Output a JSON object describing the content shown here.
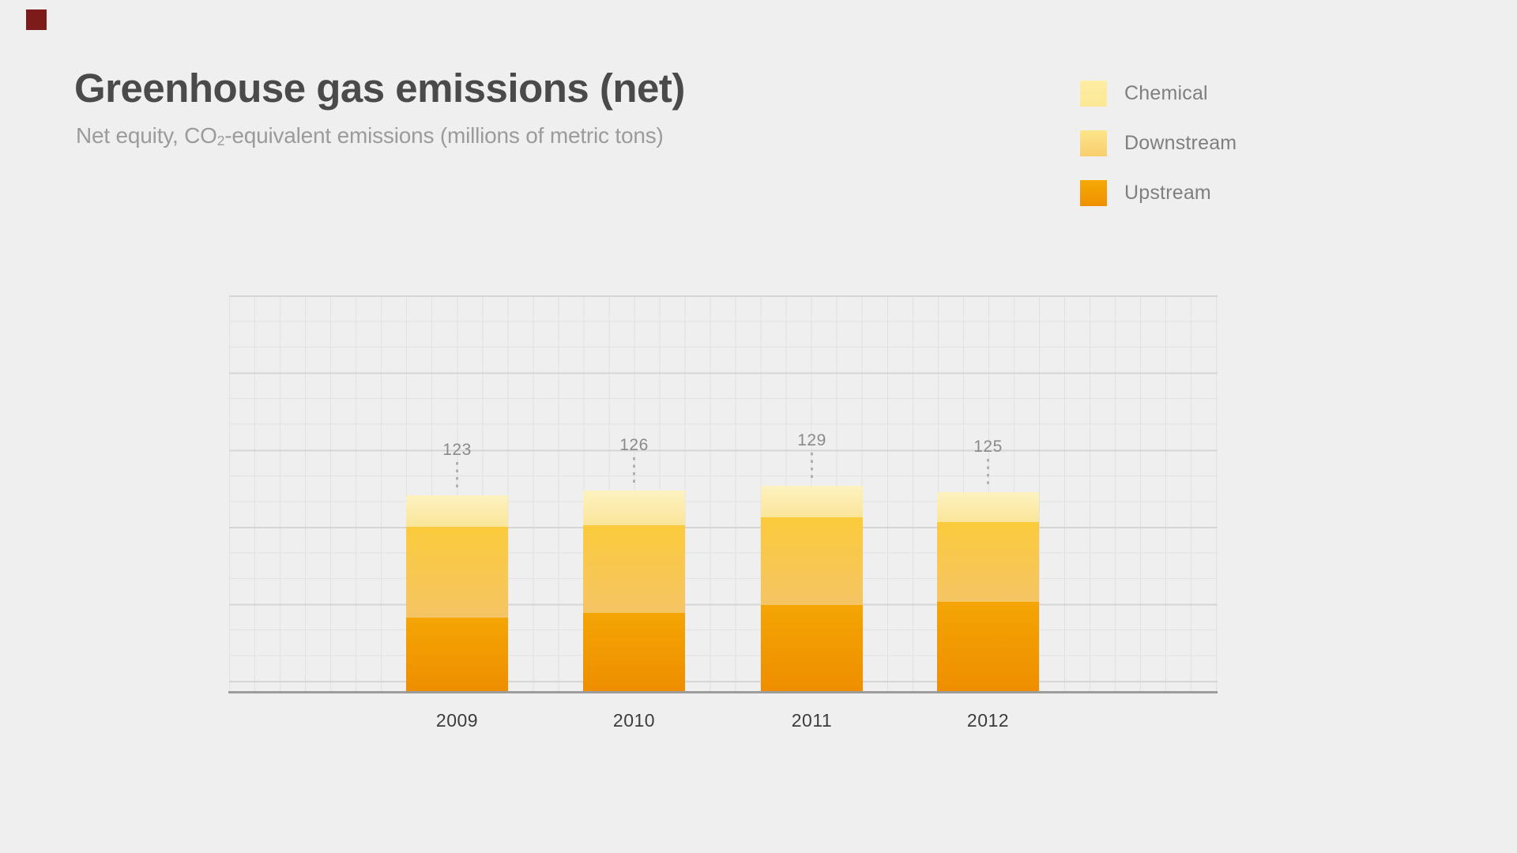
{
  "page": {
    "background_color": "#EFEFEF",
    "marker_color": "#7D1A1A"
  },
  "header": {
    "title": "Greenhouse gas emissions (net)",
    "subtitle_prefix": "Net equity, CO",
    "subtitle_subscript": "2",
    "subtitle_suffix": "-equivalent emissions (millions of metric tons)"
  },
  "legend": {
    "position": "top-right",
    "items": [
      {
        "label": "Chemical",
        "color_top": "#FEEDA2",
        "color_bottom": "#FCE896"
      },
      {
        "label": "Downstream",
        "color_top": "#FDE58A",
        "color_bottom": "#F8CE6D"
      },
      {
        "label": "Upstream",
        "color_top": "#F5AA04",
        "color_bottom": "#EF9002"
      }
    ]
  },
  "chart_data": {
    "type": "bar",
    "stacked": true,
    "title": "Greenhouse gas emissions (net)",
    "subtitle": "Net equity, CO2-equivalent emissions (millions of metric tons)",
    "categories": [
      "2009",
      "2010",
      "2011",
      "2012"
    ],
    "series": [
      {
        "name": "Upstream",
        "values": [
          46,
          49,
          54,
          56
        ],
        "color_top": "#F4A504",
        "color_bottom": "#EE8E00"
      },
      {
        "name": "Downstream",
        "values": [
          57,
          55,
          55,
          50
        ],
        "color_top": "#FBCB3C",
        "color_bottom": "#F5C464"
      },
      {
        "name": "Chemical",
        "values": [
          20,
          22,
          20,
          19
        ],
        "color_top": "#FDF2C0",
        "color_bottom": "#FAE59A"
      }
    ],
    "totals": [
      123,
      126,
      129,
      125
    ],
    "xlabel": "",
    "ylabel": "",
    "grid": true,
    "value_labels_shown": true,
    "legend_position": "top-right",
    "colors": {
      "grid_minor": "#E1E1E1",
      "grid_major": "#D5D5D5",
      "axis": "#9C9C9C",
      "value_label": "#8A8A8A",
      "category_label": "#3C3C3C"
    }
  }
}
